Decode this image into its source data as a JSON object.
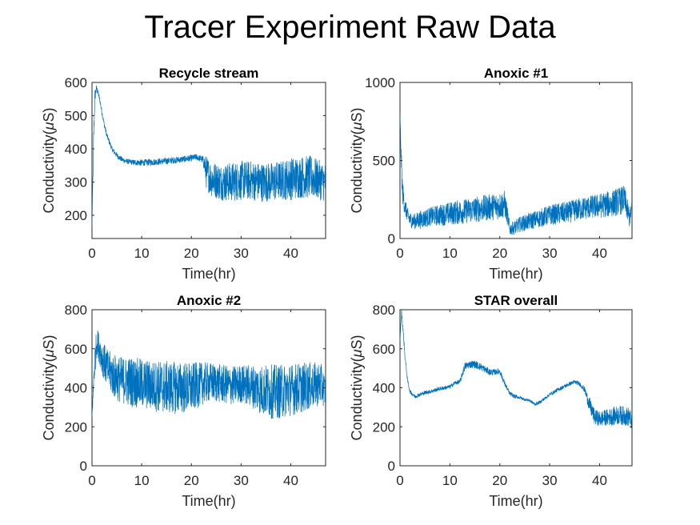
{
  "figure": {
    "title": "Tracer Experiment Raw Data",
    "series_color": "#0072BD"
  },
  "chart_data": [
    {
      "type": "line",
      "title": "Recycle stream",
      "xlabel": "Time(hr)",
      "ylabel_main": "Conductivity(",
      "ylabel_mu": "μ",
      "ylabel_end": "S)",
      "xlim": [
        0,
        47
      ],
      "ylim": [
        130,
        600
      ],
      "xticks": [
        0,
        10,
        20,
        30,
        40
      ],
      "yticks": [
        200,
        300,
        400,
        500,
        600
      ],
      "series": [
        {
          "x": [
            0,
            0.3,
            0.6,
            0.9,
            1.2,
            1.6,
            2.0,
            2.5,
            3,
            3.5,
            4,
            5,
            6,
            7,
            8,
            10,
            12,
            14,
            16,
            18,
            20,
            21,
            22,
            22.5,
            23,
            24,
            26,
            28,
            30,
            32,
            34,
            36,
            38,
            40,
            42,
            44,
            46,
            47
          ],
          "y": [
            160,
            420,
            560,
            582,
            570,
            545,
            510,
            470,
            440,
            420,
            400,
            380,
            368,
            362,
            360,
            358,
            360,
            362,
            365,
            368,
            372,
            375,
            370,
            360,
            330,
            310,
            300,
            300,
            305,
            305,
            300,
            300,
            305,
            310,
            315,
            315,
            305,
            300
          ],
          "noise": [
            0,
            30,
            20,
            10,
            8,
            8,
            8,
            8,
            8,
            8,
            8,
            8,
            8,
            8,
            8,
            10,
            10,
            10,
            10,
            10,
            10,
            10,
            10,
            20,
            50,
            55,
            55,
            60,
            60,
            60,
            60,
            60,
            60,
            65,
            65,
            65,
            60,
            60
          ]
        }
      ]
    },
    {
      "type": "line",
      "title": "Anoxic #1",
      "xlabel": "Time(hr)",
      "ylabel_main": "Conductivity(",
      "ylabel_mu": "μ",
      "ylabel_end": "S)",
      "xlim": [
        0,
        46.5
      ],
      "ylim": [
        0,
        1000
      ],
      "xticks": [
        0,
        10,
        20,
        30,
        40
      ],
      "yticks": [
        0,
        500,
        1000
      ],
      "series": [
        {
          "x": [
            0,
            0.2,
            0.5,
            1,
            1.5,
            2,
            3,
            4,
            5,
            6,
            8,
            10,
            12,
            14,
            16,
            18,
            20,
            21,
            21.5,
            22,
            23,
            24,
            26,
            28,
            30,
            32,
            34,
            36,
            38,
            40,
            42,
            44,
            45,
            46,
            46.5
          ],
          "y": [
            800,
            550,
            300,
            200,
            150,
            120,
            110,
            120,
            130,
            140,
            150,
            160,
            170,
            180,
            190,
            200,
            210,
            220,
            150,
            60,
            70,
            90,
            110,
            130,
            150,
            160,
            170,
            190,
            200,
            210,
            220,
            240,
            250,
            130,
            200
          ],
          "noise": [
            0,
            60,
            80,
            60,
            50,
            50,
            50,
            60,
            60,
            60,
            70,
            75,
            80,
            80,
            85,
            85,
            90,
            90,
            60,
            40,
            45,
            50,
            55,
            60,
            65,
            70,
            70,
            75,
            75,
            80,
            85,
            90,
            90,
            60,
            50
          ]
        }
      ]
    },
    {
      "type": "line",
      "title": "Anoxic #2",
      "xlabel": "Time(hr)",
      "ylabel_main": "Conductivity(",
      "ylabel_mu": "μ",
      "ylabel_end": "S)",
      "xlim": [
        0,
        47
      ],
      "ylim": [
        0,
        800
      ],
      "xticks": [
        0,
        10,
        20,
        30,
        40
      ],
      "yticks": [
        0,
        200,
        400,
        600,
        800
      ],
      "series": [
        {
          "x": [
            0,
            0.5,
            1,
            1.5,
            2,
            3,
            4,
            5,
            6,
            8,
            10,
            12,
            14,
            16,
            18,
            20,
            22,
            24,
            26,
            28,
            30,
            32,
            34,
            36,
            38,
            40,
            42,
            44,
            46,
            47
          ],
          "y": [
            250,
            520,
            640,
            600,
            560,
            500,
            470,
            450,
            440,
            430,
            420,
            410,
            405,
            400,
            400,
            400,
            420,
            430,
            420,
            410,
            420,
            410,
            390,
            380,
            380,
            390,
            400,
            410,
            420,
            380
          ],
          "noise": [
            0,
            100,
            70,
            80,
            90,
            100,
            110,
            120,
            120,
            130,
            130,
            130,
            135,
            135,
            135,
            130,
            110,
            100,
            100,
            100,
            100,
            110,
            130,
            140,
            140,
            135,
            130,
            120,
            110,
            80
          ]
        }
      ]
    },
    {
      "type": "line",
      "title": "STAR overall",
      "xlabel": "Time(hr)",
      "ylabel_main": "Conductivity(",
      "ylabel_mu": "μ",
      "ylabel_end": "S)",
      "xlim": [
        0,
        46.5
      ],
      "ylim": [
        0,
        800
      ],
      "xticks": [
        0,
        10,
        20,
        30,
        40
      ],
      "yticks": [
        0,
        200,
        400,
        600,
        800
      ],
      "series": [
        {
          "x": [
            0,
            0.3,
            0.6,
            1,
            1.5,
            2,
            3,
            4,
            5,
            6,
            8,
            10,
            11,
            12,
            13,
            14,
            15,
            16,
            17,
            18,
            19,
            20,
            21,
            22,
            23,
            24,
            25,
            26,
            27,
            28,
            30,
            32,
            34,
            35,
            36,
            37,
            38,
            39,
            40,
            42,
            44,
            46,
            46.5
          ],
          "y": [
            640,
            790,
            700,
            560,
            440,
            380,
            355,
            365,
            375,
            380,
            395,
            405,
            425,
            430,
            510,
            520,
            520,
            510,
            495,
            480,
            480,
            485,
            420,
            370,
            355,
            350,
            340,
            335,
            315,
            325,
            365,
            395,
            420,
            430,
            420,
            390,
            310,
            250,
            240,
            250,
            260,
            250,
            220
          ],
          "noise": [
            0,
            10,
            20,
            15,
            10,
            10,
            10,
            10,
            10,
            10,
            10,
            10,
            10,
            12,
            20,
            20,
            20,
            20,
            18,
            18,
            15,
            15,
            12,
            10,
            10,
            8,
            8,
            8,
            8,
            8,
            8,
            10,
            10,
            10,
            10,
            15,
            40,
            40,
            40,
            45,
            50,
            50,
            40
          ]
        }
      ]
    }
  ]
}
